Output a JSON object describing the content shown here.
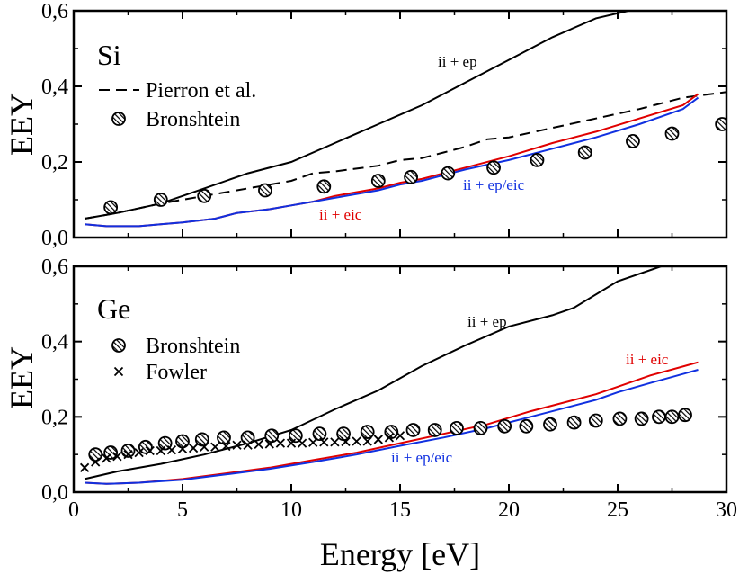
{
  "chart_data": [
    {
      "type": "line",
      "panel": "top",
      "label": "Si",
      "ylabel": "EEY",
      "xlabel": "",
      "xlim": [
        0,
        30
      ],
      "ylim": [
        0,
        0.6
      ],
      "xticks": [
        0,
        5,
        10,
        15,
        20,
        25,
        30
      ],
      "yticks": [
        0,
        0.2,
        0.4,
        0.6
      ],
      "xtick_labels": [
        "0",
        "5",
        "10",
        "15",
        "20",
        "25",
        "30"
      ],
      "ytick_labels": [
        "0,0",
        "0,2",
        "0,4",
        "0,6"
      ],
      "series": [
        {
          "name": "ii + ep",
          "color": "#000000",
          "style": "solid",
          "x": [
            0.5,
            2,
            4,
            6,
            8,
            10,
            12,
            14,
            16,
            18,
            20,
            22,
            24,
            25.5
          ],
          "y": [
            0.05,
            0.065,
            0.09,
            0.13,
            0.17,
            0.2,
            0.25,
            0.3,
            0.35,
            0.41,
            0.47,
            0.53,
            0.58,
            0.6
          ]
        },
        {
          "name": "Pierron et al.",
          "color": "#000000",
          "style": "dashed",
          "x": [
            0.5,
            2,
            4,
            6,
            8,
            10,
            11,
            12,
            14,
            15,
            16,
            17,
            18,
            19,
            20,
            22,
            24,
            26,
            28,
            30
          ],
          "y": [
            0.05,
            0.065,
            0.09,
            0.11,
            0.13,
            0.15,
            0.17,
            0.175,
            0.19,
            0.205,
            0.21,
            0.225,
            0.24,
            0.26,
            0.265,
            0.29,
            0.315,
            0.34,
            0.37,
            0.385
          ]
        },
        {
          "name": "ii + eic",
          "color": "#e00000",
          "style": "solid",
          "x": [
            0.5,
            1.5,
            3,
            4,
            5,
            6.5,
            7.5,
            9,
            10,
            11,
            12,
            14,
            15,
            16,
            17,
            18,
            20,
            22,
            24,
            26,
            28,
            28.7
          ],
          "y": [
            0.035,
            0.03,
            0.03,
            0.035,
            0.04,
            0.05,
            0.065,
            0.075,
            0.085,
            0.095,
            0.11,
            0.13,
            0.145,
            0.155,
            0.17,
            0.185,
            0.215,
            0.25,
            0.28,
            0.315,
            0.35,
            0.38
          ]
        },
        {
          "name": "ii + ep/eic",
          "color": "#1030e0",
          "style": "solid",
          "x": [
            0.5,
            1.5,
            3,
            4,
            5,
            6.5,
            7.5,
            9,
            10,
            11,
            12,
            14,
            15,
            16,
            17,
            18,
            20,
            22,
            24,
            26,
            28,
            28.7
          ],
          "y": [
            0.035,
            0.03,
            0.03,
            0.035,
            0.04,
            0.05,
            0.065,
            0.075,
            0.085,
            0.095,
            0.105,
            0.125,
            0.14,
            0.15,
            0.165,
            0.18,
            0.205,
            0.235,
            0.265,
            0.3,
            0.34,
            0.37
          ]
        },
        {
          "name": "Bronshtein",
          "type": "scatter",
          "marker": "hatched-circle",
          "x": [
            1.7,
            4,
            6,
            8.8,
            11.5,
            14,
            15.5,
            17.2,
            19.3,
            21.3,
            23.5,
            25.7,
            27.5,
            29.8
          ],
          "y": [
            0.08,
            0.1,
            0.11,
            0.125,
            0.135,
            0.15,
            0.16,
            0.17,
            0.185,
            0.205,
            0.225,
            0.255,
            0.275,
            0.3
          ]
        }
      ],
      "legend": [
        {
          "label": "Pierron et al.",
          "marker": "dashed-line"
        },
        {
          "label": "Bronshtein",
          "marker": "hatched-circle"
        }
      ],
      "annotations": [
        {
          "text": "ii + ep",
          "x": 19.5,
          "y": 0.46,
          "color": "#000000"
        },
        {
          "text": "ii + eic",
          "x": 12.5,
          "y": 0.055,
          "color": "#e00000"
        },
        {
          "text": "ii + ep/eic",
          "x": 21.5,
          "y": 0.125,
          "color": "#1030e0"
        }
      ]
    },
    {
      "type": "line",
      "panel": "bottom",
      "label": "Ge",
      "ylabel": "EEY",
      "xlabel": "Energy [eV]",
      "xlim": [
        0,
        30
      ],
      "ylim": [
        0,
        0.6
      ],
      "xticks": [
        0,
        5,
        10,
        15,
        20,
        25,
        30
      ],
      "yticks": [
        0,
        0.2,
        0.4,
        0.6
      ],
      "xtick_labels": [
        "0",
        "5",
        "10",
        "15",
        "20",
        "25",
        "30"
      ],
      "ytick_labels": [
        "0,0",
        "0,2",
        "0,4",
        "0,6"
      ],
      "series": [
        {
          "name": "ii + ep",
          "color": "#000000",
          "style": "solid",
          "x": [
            0.5,
            2,
            4,
            6,
            8,
            10,
            12,
            14,
            16,
            18,
            20,
            22,
            23,
            25,
            27,
            28.5
          ],
          "y": [
            0.035,
            0.055,
            0.075,
            0.1,
            0.13,
            0.165,
            0.22,
            0.27,
            0.335,
            0.39,
            0.44,
            0.47,
            0.49,
            0.56,
            0.6,
            0.61
          ]
        },
        {
          "name": "ii + eic",
          "color": "#e00000",
          "style": "solid",
          "x": [
            0.5,
            1.5,
            3,
            5,
            7,
            9,
            11,
            13,
            15,
            17,
            19,
            21,
            23,
            24,
            25,
            26.5,
            28.7
          ],
          "y": [
            0.025,
            0.022,
            0.025,
            0.035,
            0.05,
            0.065,
            0.085,
            0.105,
            0.13,
            0.155,
            0.18,
            0.215,
            0.245,
            0.26,
            0.28,
            0.31,
            0.345
          ]
        },
        {
          "name": "ii + ep/eic",
          "color": "#1030e0",
          "style": "solid",
          "x": [
            0.5,
            1.5,
            3,
            5,
            7,
            9,
            11,
            13,
            15,
            17,
            19,
            21,
            23,
            24,
            25,
            26.5,
            28.7
          ],
          "y": [
            0.025,
            0.022,
            0.025,
            0.033,
            0.047,
            0.062,
            0.08,
            0.1,
            0.123,
            0.145,
            0.17,
            0.2,
            0.23,
            0.245,
            0.265,
            0.29,
            0.325
          ]
        },
        {
          "name": "Bronshtein",
          "type": "scatter",
          "marker": "hatched-circle",
          "x": [
            1,
            1.7,
            2.5,
            3.3,
            4.2,
            5,
            5.9,
            6.9,
            8,
            9.1,
            10.2,
            11.3,
            12.4,
            13.5,
            14.6,
            15.6,
            16.6,
            17.6,
            18.7,
            19.8,
            20.8,
            21.9,
            23,
            24,
            25.1,
            26.1,
            26.9,
            27.5,
            28.1
          ],
          "y": [
            0.1,
            0.105,
            0.11,
            0.12,
            0.13,
            0.135,
            0.14,
            0.145,
            0.145,
            0.15,
            0.15,
            0.155,
            0.155,
            0.16,
            0.16,
            0.165,
            0.165,
            0.17,
            0.17,
            0.175,
            0.175,
            0.18,
            0.185,
            0.19,
            0.195,
            0.195,
            0.2,
            0.2,
            0.205
          ]
        },
        {
          "name": "Fowler",
          "type": "scatter",
          "marker": "x",
          "x": [
            0.5,
            1,
            1.5,
            2,
            2.5,
            3,
            3.5,
            4,
            4.5,
            5,
            5.5,
            6,
            6.5,
            7,
            7.5,
            8,
            8.5,
            9,
            9.5,
            10,
            10.5,
            11,
            11.5,
            12,
            12.5,
            13,
            13.5,
            14,
            14.5,
            15
          ],
          "y": [
            0.065,
            0.08,
            0.09,
            0.095,
            0.1,
            0.105,
            0.11,
            0.11,
            0.112,
            0.115,
            0.117,
            0.12,
            0.12,
            0.122,
            0.125,
            0.125,
            0.127,
            0.128,
            0.13,
            0.13,
            0.13,
            0.132,
            0.133,
            0.133,
            0.134,
            0.135,
            0.135,
            0.14,
            0.145,
            0.15
          ]
        }
      ],
      "legend": [
        {
          "label": "Bronshtein",
          "marker": "hatched-circle"
        },
        {
          "label": "Fowler",
          "marker": "x"
        }
      ],
      "annotations": [
        {
          "text": "ii + ep",
          "x": 19,
          "y": 0.44,
          "color": "#000000"
        },
        {
          "text": "ii + eic",
          "x": 25.5,
          "y": 0.34,
          "color": "#e00000"
        },
        {
          "text": "ii + ep/eic",
          "x": 16.5,
          "y": 0.08,
          "color": "#1030e0"
        }
      ]
    }
  ]
}
